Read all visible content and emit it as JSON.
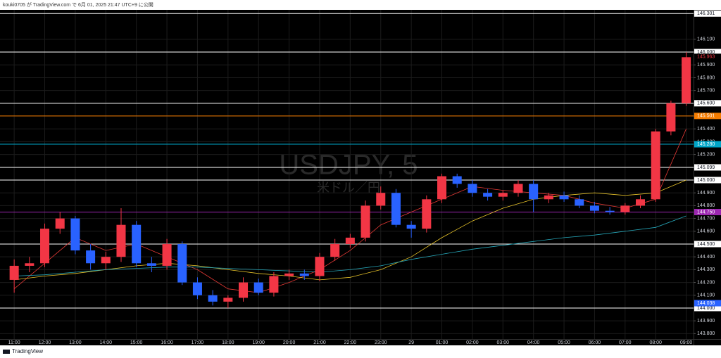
{
  "header": {
    "text": "kouki0705 が TradingView.com で 6月 01, 2025 21:47 UTC+9 に公開"
  },
  "footer": {
    "brand": "TradingView"
  },
  "chart_data": {
    "type": "candlestick",
    "watermark": {
      "symbol": "USDJPY, 5",
      "name": "米ドル／円"
    },
    "up_color": "#f23645",
    "down_color": "#2962ff",
    "grid": true,
    "x": [
      0,
      0.5,
      1,
      1.5,
      2,
      2.5,
      3,
      3.5,
      4,
      4.5,
      5,
      5.5,
      6,
      6.5,
      7,
      7.5,
      8,
      8.5,
      9,
      9.5,
      10,
      10.5,
      11,
      11.5,
      12,
      12.5,
      13,
      13.5,
      14,
      14.5,
      15,
      15.5,
      16,
      16.5,
      17,
      17.5,
      18,
      18.5,
      19,
      19.5,
      20,
      20.5,
      21,
      21.5,
      22
    ],
    "open": [
      144.22,
      144.33,
      144.35,
      144.62,
      144.7,
      144.45,
      144.35,
      144.4,
      144.65,
      144.35,
      144.33,
      144.5,
      144.2,
      144.1,
      144.05,
      144.08,
      144.2,
      144.12,
      144.25,
      144.27,
      144.25,
      144.4,
      144.5,
      144.55,
      144.8,
      144.9,
      144.65,
      144.62,
      144.85,
      145.03,
      144.97,
      144.9,
      144.87,
      144.9,
      144.97,
      144.85,
      144.88,
      144.85,
      144.8,
      144.76,
      144.75,
      144.8,
      144.85,
      145.38,
      145.6
    ],
    "high": [
      144.38,
      144.4,
      144.66,
      144.75,
      144.72,
      144.5,
      144.44,
      144.78,
      144.68,
      144.4,
      144.54,
      144.52,
      144.24,
      144.14,
      144.1,
      144.24,
      144.23,
      144.28,
      144.3,
      144.3,
      144.43,
      144.54,
      144.58,
      144.84,
      144.95,
      144.93,
      144.68,
      144.88,
      145.05,
      145.05,
      145.0,
      144.93,
      144.92,
      145.0,
      145.0,
      144.9,
      144.91,
      144.88,
      144.83,
      144.79,
      144.82,
      144.88,
      145.4,
      145.62,
      146.0
    ],
    "low": [
      144.12,
      144.28,
      144.32,
      144.58,
      144.42,
      144.3,
      144.3,
      144.36,
      144.32,
      144.28,
      144.3,
      144.18,
      144.07,
      144.02,
      144.0,
      144.05,
      144.1,
      144.09,
      144.22,
      144.22,
      144.21,
      144.37,
      144.47,
      144.52,
      144.77,
      144.63,
      144.55,
      144.59,
      144.82,
      144.94,
      144.87,
      144.84,
      144.84,
      144.87,
      144.75,
      144.82,
      144.83,
      144.78,
      144.74,
      144.73,
      144.73,
      144.78,
      144.83,
      145.35,
      145.58
    ],
    "close": [
      144.33,
      144.35,
      144.62,
      144.7,
      144.45,
      144.35,
      144.4,
      144.65,
      144.35,
      144.33,
      144.5,
      144.2,
      144.1,
      144.05,
      144.08,
      144.2,
      144.12,
      144.25,
      144.27,
      144.25,
      144.4,
      144.5,
      144.55,
      144.8,
      144.9,
      144.65,
      144.62,
      144.85,
      145.03,
      144.97,
      144.9,
      144.87,
      144.9,
      144.97,
      144.85,
      144.88,
      144.85,
      144.8,
      144.76,
      144.75,
      144.8,
      144.85,
      145.38,
      145.6,
      145.96
    ],
    "moving_averages": [
      {
        "color": "#e53935",
        "x": [
          0,
          1,
          2,
          3,
          4,
          5,
          6,
          7,
          8,
          9,
          10,
          11,
          12,
          13,
          14,
          15,
          16,
          17,
          18,
          19,
          20,
          21,
          22
        ],
        "values": [
          144.15,
          144.35,
          144.55,
          144.45,
          144.5,
          144.4,
          144.3,
          144.15,
          144.12,
          144.2,
          144.3,
          144.45,
          144.65,
          144.75,
          144.85,
          144.95,
          144.92,
          144.9,
          144.88,
          144.82,
          144.78,
          144.85,
          145.4
        ]
      },
      {
        "color": "#e6c229",
        "x": [
          0,
          1,
          2,
          3,
          4,
          5,
          6,
          7,
          8,
          9,
          10,
          11,
          12,
          13,
          14,
          15,
          16,
          17,
          18,
          19,
          20,
          21,
          22
        ],
        "values": [
          144.22,
          144.25,
          144.27,
          144.3,
          144.33,
          144.35,
          144.33,
          144.3,
          144.27,
          144.25,
          144.22,
          144.24,
          144.3,
          144.4,
          144.55,
          144.68,
          144.78,
          144.85,
          144.88,
          144.9,
          144.88,
          144.9,
          145.0
        ]
      },
      {
        "color": "#26a6b8",
        "x": [
          0,
          1,
          2,
          3,
          4,
          5,
          6,
          7,
          8,
          9,
          10,
          11,
          12,
          13,
          14,
          15,
          16,
          17,
          18,
          19,
          20,
          21,
          22
        ],
        "values": [
          144.25,
          144.26,
          144.28,
          144.3,
          144.31,
          144.32,
          144.32,
          144.31,
          144.3,
          144.29,
          144.28,
          144.3,
          144.33,
          144.38,
          144.42,
          144.46,
          144.49,
          144.52,
          144.55,
          144.57,
          144.6,
          144.63,
          144.72
        ]
      }
    ],
    "hlines": [
      {
        "value": 146.301,
        "label": "146.301",
        "color": "#ffffff"
      },
      {
        "value": 146.0,
        "label": "146.000",
        "color": "#ffffff"
      },
      {
        "value": 145.6,
        "label": "145.600",
        "color": "#ffffff"
      },
      {
        "value": 145.501,
        "label": "145.501",
        "color": "#f57c00"
      },
      {
        "value": 145.28,
        "label": "145.280",
        "color": "#00a6c8"
      },
      {
        "value": 145.099,
        "label": "145.099",
        "color": "#ffffff"
      },
      {
        "value": 145.0,
        "label": "145.000",
        "color": "#ffffff"
      },
      {
        "value": 144.75,
        "label": "144.750",
        "color": "#9c27b0"
      },
      {
        "value": 144.5,
        "label": "144.500",
        "color": "#ffffff"
      },
      {
        "value": 144.0,
        "label": "144.000",
        "color": "#ffffff"
      }
    ],
    "price_labels": [
      {
        "value": 145.963,
        "label": "145.963",
        "color": "#f23645"
      },
      {
        "value": 144.038,
        "label": "144.038",
        "color": "#2962ff"
      }
    ],
    "xlim": [
      -0.28,
      22.24
    ],
    "ylim": [
      143.758,
      146.33
    ],
    "xticks": [
      {
        "value": 0,
        "label": "11:00"
      },
      {
        "value": 1,
        "label": "12:00"
      },
      {
        "value": 2,
        "label": "13:00"
      },
      {
        "value": 3,
        "label": "14:00"
      },
      {
        "value": 4,
        "label": "15:00"
      },
      {
        "value": 5,
        "label": "16:00"
      },
      {
        "value": 6,
        "label": "17:00"
      },
      {
        "value": 7,
        "label": "18:00"
      },
      {
        "value": 8,
        "label": "19:00"
      },
      {
        "value": 9,
        "label": "20:00"
      },
      {
        "value": 10,
        "label": "21:00"
      },
      {
        "value": 11,
        "label": "22:00"
      },
      {
        "value": 12,
        "label": "23:00"
      },
      {
        "value": 13,
        "label": "29"
      },
      {
        "value": 14,
        "label": "01:00"
      },
      {
        "value": 15,
        "label": "02:00"
      },
      {
        "value": 16,
        "label": "03:00"
      },
      {
        "value": 17,
        "label": "04:00"
      },
      {
        "value": 18,
        "label": "05:00"
      },
      {
        "value": 19,
        "label": "06:00"
      },
      {
        "value": 20,
        "label": "07:00"
      },
      {
        "value": 21,
        "label": "08:00"
      },
      {
        "value": 22,
        "label": "09:00"
      }
    ],
    "yticks": [
      {
        "value": 143.8,
        "label": "143.800"
      },
      {
        "value": 143.9,
        "label": "143.900"
      },
      {
        "value": 144.0,
        "label": "144.000"
      },
      {
        "value": 144.1,
        "label": "144.100"
      },
      {
        "value": 144.2,
        "label": "144.200"
      },
      {
        "value": 144.3,
        "label": "144.300"
      },
      {
        "value": 144.4,
        "label": "144.400"
      },
      {
        "value": 144.5,
        "label": "144.500"
      },
      {
        "value": 144.6,
        "label": "144.600"
      },
      {
        "value": 144.7,
        "label": "144.700"
      },
      {
        "value": 144.8,
        "label": "144.800"
      },
      {
        "value": 144.9,
        "label": "144.900"
      },
      {
        "value": 145.0,
        "label": "145.000"
      },
      {
        "value": 145.1,
        "label": "145.100"
      },
      {
        "value": 145.2,
        "label": "145.200"
      },
      {
        "value": 145.3,
        "label": "145.300"
      },
      {
        "value": 145.4,
        "label": "145.400"
      },
      {
        "value": 145.5,
        "label": "145.500"
      },
      {
        "value": 145.6,
        "label": "145.600"
      },
      {
        "value": 145.7,
        "label": "145.700"
      },
      {
        "value": 145.8,
        "label": "145.800"
      },
      {
        "value": 145.9,
        "label": "145.900"
      },
      {
        "value": 146.0,
        "label": "146.000"
      },
      {
        "value": 146.1,
        "label": "146.100"
      }
    ]
  }
}
